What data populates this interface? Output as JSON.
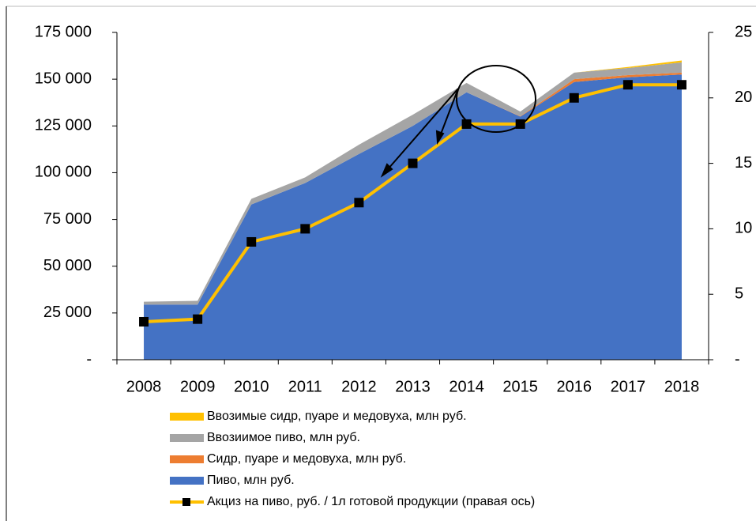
{
  "chart_data": {
    "type": "area",
    "categories": [
      "2008",
      "2009",
      "2010",
      "2011",
      "2012",
      "2013",
      "2014",
      "2015",
      "2016",
      "2017",
      "2018"
    ],
    "series": [
      {
        "name": "Пиво, млн руб.",
        "color": "#4472c4",
        "values": [
          29500,
          29500,
          83000,
          94500,
          110000,
          125000,
          143000,
          130000,
          148500,
          151000,
          152500
        ]
      },
      {
        "name": "Сидр,  пуаре и медовуха, млн руб.",
        "color": "#ed7d31",
        "values": [
          0,
          0,
          0,
          0,
          0,
          0,
          0,
          200,
          1500,
          1200,
          1000
        ]
      },
      {
        "name": "Ввозиимое пиво, млн руб.",
        "color": "#a5a5a5",
        "values": [
          1500,
          2000,
          3000,
          3000,
          5000,
          6000,
          5000,
          2500,
          3500,
          3800,
          5500
        ]
      },
      {
        "name": "Ввозимые сидр, пуаре и медовуха, млн руб.",
        "color": "#ffc000",
        "values": [
          0,
          0,
          0,
          0,
          0,
          0,
          0,
          0,
          0,
          500,
          1000
        ]
      },
      {
        "name": "Акциз на пиво, руб. / 1л готовой продукции (правая ось)",
        "color": "#ffc000",
        "marker_color": "#000000",
        "axis": "y2",
        "type": "line",
        "values": [
          2.9,
          3.1,
          9,
          10,
          12,
          15,
          18,
          18,
          20,
          21,
          21
        ]
      }
    ],
    "ylim": [
      0,
      175000
    ],
    "yticks": [
      {
        "value": 0,
        "label": "-"
      },
      {
        "value": 25000,
        "label": "25 000"
      },
      {
        "value": 50000,
        "label": "50 000"
      },
      {
        "value": 75000,
        "label": "75 000"
      },
      {
        "value": 100000,
        "label": "100 000"
      },
      {
        "value": 125000,
        "label": "125 000"
      },
      {
        "value": 150000,
        "label": "150 000"
      },
      {
        "value": 175000,
        "label": "175 000"
      }
    ],
    "y2lim": [
      0,
      25
    ],
    "y2ticks": [
      {
        "value": 0,
        "label": "-"
      },
      5,
      10,
      15,
      20,
      25
    ]
  }
}
